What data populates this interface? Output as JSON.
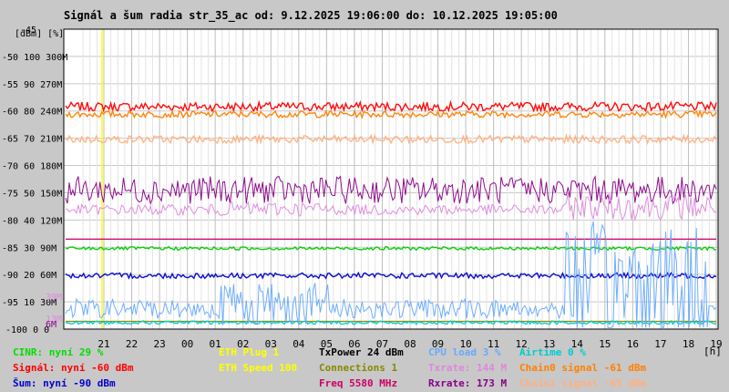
{
  "title": "Signál a šum radia str_35_ac od: 9.12.2025 19:06:00 do: 10.12.2025 19:05:00",
  "chart_data": {
    "type": "line",
    "units_label": "[dBm] [%]",
    "x_unit_label": "[h]",
    "x_ticks": [
      "21",
      "22",
      "23",
      "00",
      "01",
      "02",
      "03",
      "04",
      "05",
      "06",
      "07",
      "08",
      "09",
      "10",
      "11",
      "12",
      "13",
      "14",
      "15",
      "16",
      "17",
      "18",
      "19"
    ],
    "y_ticks": [
      {
        "dbm": "-45",
        "pct": "",
        "mbps": ""
      },
      {
        "dbm": "-50",
        "pct": "100",
        "mbps": "300M"
      },
      {
        "dbm": "-55",
        "pct": "90",
        "mbps": "270M"
      },
      {
        "dbm": "-60",
        "pct": "80",
        "mbps": "240M"
      },
      {
        "dbm": "-65",
        "pct": "70",
        "mbps": "210M"
      },
      {
        "dbm": "-70",
        "pct": "60",
        "mbps": "180M"
      },
      {
        "dbm": "-75",
        "pct": "50",
        "mbps": "150M"
      },
      {
        "dbm": "-80",
        "pct": "40",
        "mbps": "120M"
      },
      {
        "dbm": "-85",
        "pct": "30",
        "mbps": "90M"
      },
      {
        "dbm": "-90",
        "pct": "20",
        "mbps": "60M"
      },
      {
        "dbm": "-95",
        "pct": "10",
        "mbps": "30M"
      },
      {
        "dbm": "-100",
        "pct": "0",
        "mbps": "0"
      }
    ],
    "y_range_dbm": [
      -100,
      -45
    ],
    "axis_side_labels": [
      {
        "text": "39M",
        "value_dbm": -94,
        "color": "#dd88dd"
      },
      {
        "text": "13M",
        "value_dbm": -98,
        "color": "#dd88dd"
      },
      {
        "text": "6M",
        "value_dbm": -99,
        "color": "#880088"
      }
    ],
    "grid": true,
    "series": [
      {
        "name": "Signál",
        "color": "#ff0000",
        "level_dbm": -59.2,
        "spread": 0.8
      },
      {
        "name": "Chain0 signal",
        "color": "#ff8000",
        "level_dbm": -60.6,
        "spread": 0.6
      },
      {
        "name": "Chain1 signal",
        "color": "#ffb080",
        "level_dbm": -65.2,
        "spread": 0.7
      },
      {
        "name": "Rxrate",
        "color": "#880088",
        "level_dbm": -74.5,
        "spread": 2.5
      },
      {
        "name": "Txrate",
        "color": "#dd88dd",
        "level_dbm": -78.5,
        "spread": 3.5
      },
      {
        "name": "Freq",
        "color": "#cc0066",
        "level_dbm": -83.5,
        "spread": 0
      },
      {
        "name": "CINR",
        "color": "#00cc00",
        "level_dbm": -85.2,
        "spread": 0.3
      },
      {
        "name": "Šum",
        "color": "#0000cc",
        "level_dbm": -90.2,
        "spread": 0.5
      },
      {
        "name": "Connections",
        "color": "#888800",
        "level_dbm": -98.6,
        "spread": 0
      },
      {
        "name": "Airtime",
        "color": "#00cccc",
        "level_dbm": -98.8,
        "spread": 0.3
      },
      {
        "name": "CPU load",
        "color": "#66aaff",
        "level_dbm": -97,
        "spread": 4
      }
    ],
    "yellow_marker_hour": "21"
  },
  "legend": {
    "col1": [
      {
        "label": "CINR: nyní 29 %",
        "color": "#00dd00"
      },
      {
        "label": "Signál: nyní -60 dBm",
        "color": "#ff0000"
      },
      {
        "label": "Šum: nyní -90 dBm",
        "color": "#0000cc"
      }
    ],
    "col2": [
      {
        "label": "ETH Plug 1",
        "color": "#ffff00"
      },
      {
        "label": "ETH Speed 100",
        "color": "#ffff00"
      }
    ],
    "col3": [
      {
        "label": "TxPower 24 dBm",
        "color": "#000000"
      },
      {
        "label": "Connections 1",
        "color": "#888800"
      },
      {
        "label": "Freq 5580 MHz",
        "color": "#cc0066"
      }
    ],
    "col4": [
      {
        "label": "CPU load 3 %",
        "color": "#66aaff"
      },
      {
        "label": "Txrate: 144 M",
        "color": "#dd88dd"
      },
      {
        "label": "Rxrate: 173 M",
        "color": "#880088"
      }
    ],
    "col5": [
      {
        "label": "Airtime 0 %",
        "color": "#00cccc"
      },
      {
        "label": "Chain0 signal -61 dBm",
        "color": "#ff8000"
      },
      {
        "label": "Chain1 signal -65 dBm",
        "color": "#ffb080"
      }
    ]
  }
}
